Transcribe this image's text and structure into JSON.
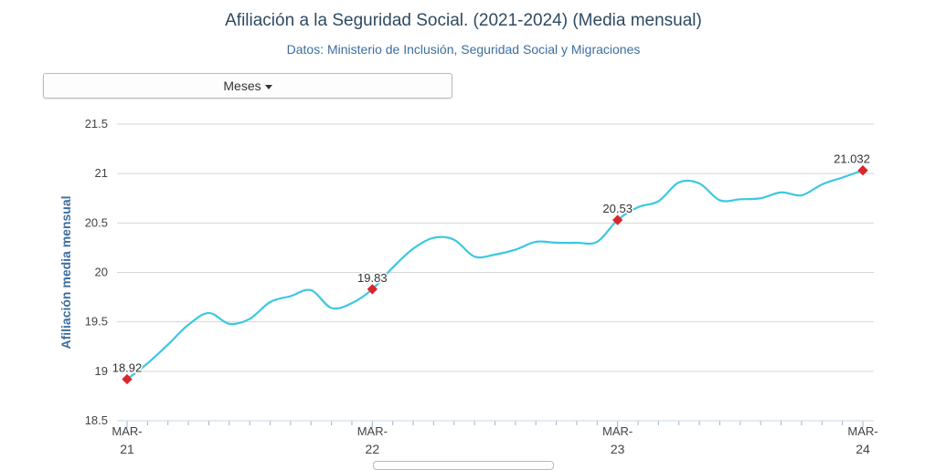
{
  "header": {
    "title": "Afiliación a la Seguridad Social. (2021-2024) (Media mensual)",
    "subtitle": "Datos: Ministerio de Inclusión, Seguridad Social y Migraciones"
  },
  "controls": {
    "dropdown_label": "Meses"
  },
  "colors": {
    "line": "#3cc8e0",
    "marker": "#d9262c",
    "grid": "#d6d6d6",
    "axis_title": "#3d6e9e",
    "tick_text": "#444444"
  },
  "chart_data": {
    "type": "line",
    "title": "Afiliación a la Seguridad Social. (2021-2024) (Media mensual)",
    "subtitle": "Datos: Ministerio de Inclusión, Seguridad Social y Migraciones",
    "ylabel": "Afiliación media mensual",
    "xlabel": "",
    "ylim": [
      18.5,
      21.5
    ],
    "yticks": [
      "18.5",
      "19",
      "19.5",
      "20",
      "20.5",
      "21",
      "21.5"
    ],
    "grid": true,
    "x_tick_labels": [
      {
        "index": 0,
        "top": "MAR-",
        "bottom": "21"
      },
      {
        "index": 12,
        "top": "MAR-",
        "bottom": "22"
      },
      {
        "index": 24,
        "top": "MAR-",
        "bottom": "23"
      },
      {
        "index": 36,
        "top": "MAR-",
        "bottom": "24"
      }
    ],
    "series": [
      {
        "values": [
          18.92,
          19.08,
          19.27,
          19.47,
          19.59,
          19.48,
          19.53,
          19.7,
          19.76,
          19.82,
          19.64,
          19.69,
          19.83,
          20.05,
          20.24,
          20.35,
          20.33,
          20.16,
          20.18,
          20.23,
          20.31,
          20.3,
          20.3,
          20.31,
          20.53,
          20.66,
          20.72,
          20.91,
          20.9,
          20.73,
          20.74,
          20.75,
          20.81,
          20.78,
          20.89,
          20.96,
          21.032
        ]
      }
    ],
    "data_labels": [
      {
        "index": 0,
        "label": "18.92"
      },
      {
        "index": 12,
        "label": "19.83"
      },
      {
        "index": 24,
        "label": "20.53"
      },
      {
        "index": 36,
        "label": "21.032"
      }
    ]
  }
}
